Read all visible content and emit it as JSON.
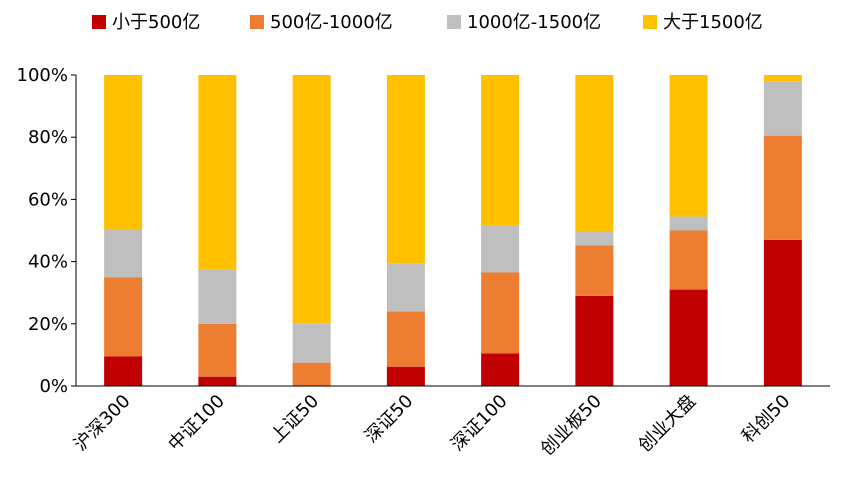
{
  "chart_data": {
    "type": "bar",
    "stacked": true,
    "percent": true,
    "categories": [
      "沪深300",
      "中证100",
      "上证50",
      "深证50",
      "深证100",
      "创业板50",
      "创业大盘",
      "科创50"
    ],
    "series": [
      {
        "name": "小于500亿",
        "color": "#C00000",
        "values": [
          9.5,
          3,
          0,
          6.2,
          10.5,
          29,
          31,
          47
        ]
      },
      {
        "name": "500亿-1000亿",
        "color": "#ED7D31",
        "values": [
          25.5,
          17,
          7.5,
          17.8,
          26,
          16.2,
          19,
          33.5
        ]
      },
      {
        "name": "1000亿-1500亿",
        "color": "#BFBFBF",
        "values": [
          15.5,
          17.5,
          12.7,
          15.5,
          15,
          4.3,
          4.5,
          17.5
        ]
      },
      {
        "name": "大于1500亿",
        "color": "#FFC000",
        "values": [
          49.5,
          62.5,
          79.8,
          60.5,
          48.5,
          50.5,
          45.5,
          2
        ]
      }
    ],
    "yticks": [
      "0%",
      "20%",
      "40%",
      "60%",
      "80%",
      "100%"
    ],
    "ylim": [
      0,
      100
    ],
    "legend_position": "top",
    "grid": false
  }
}
